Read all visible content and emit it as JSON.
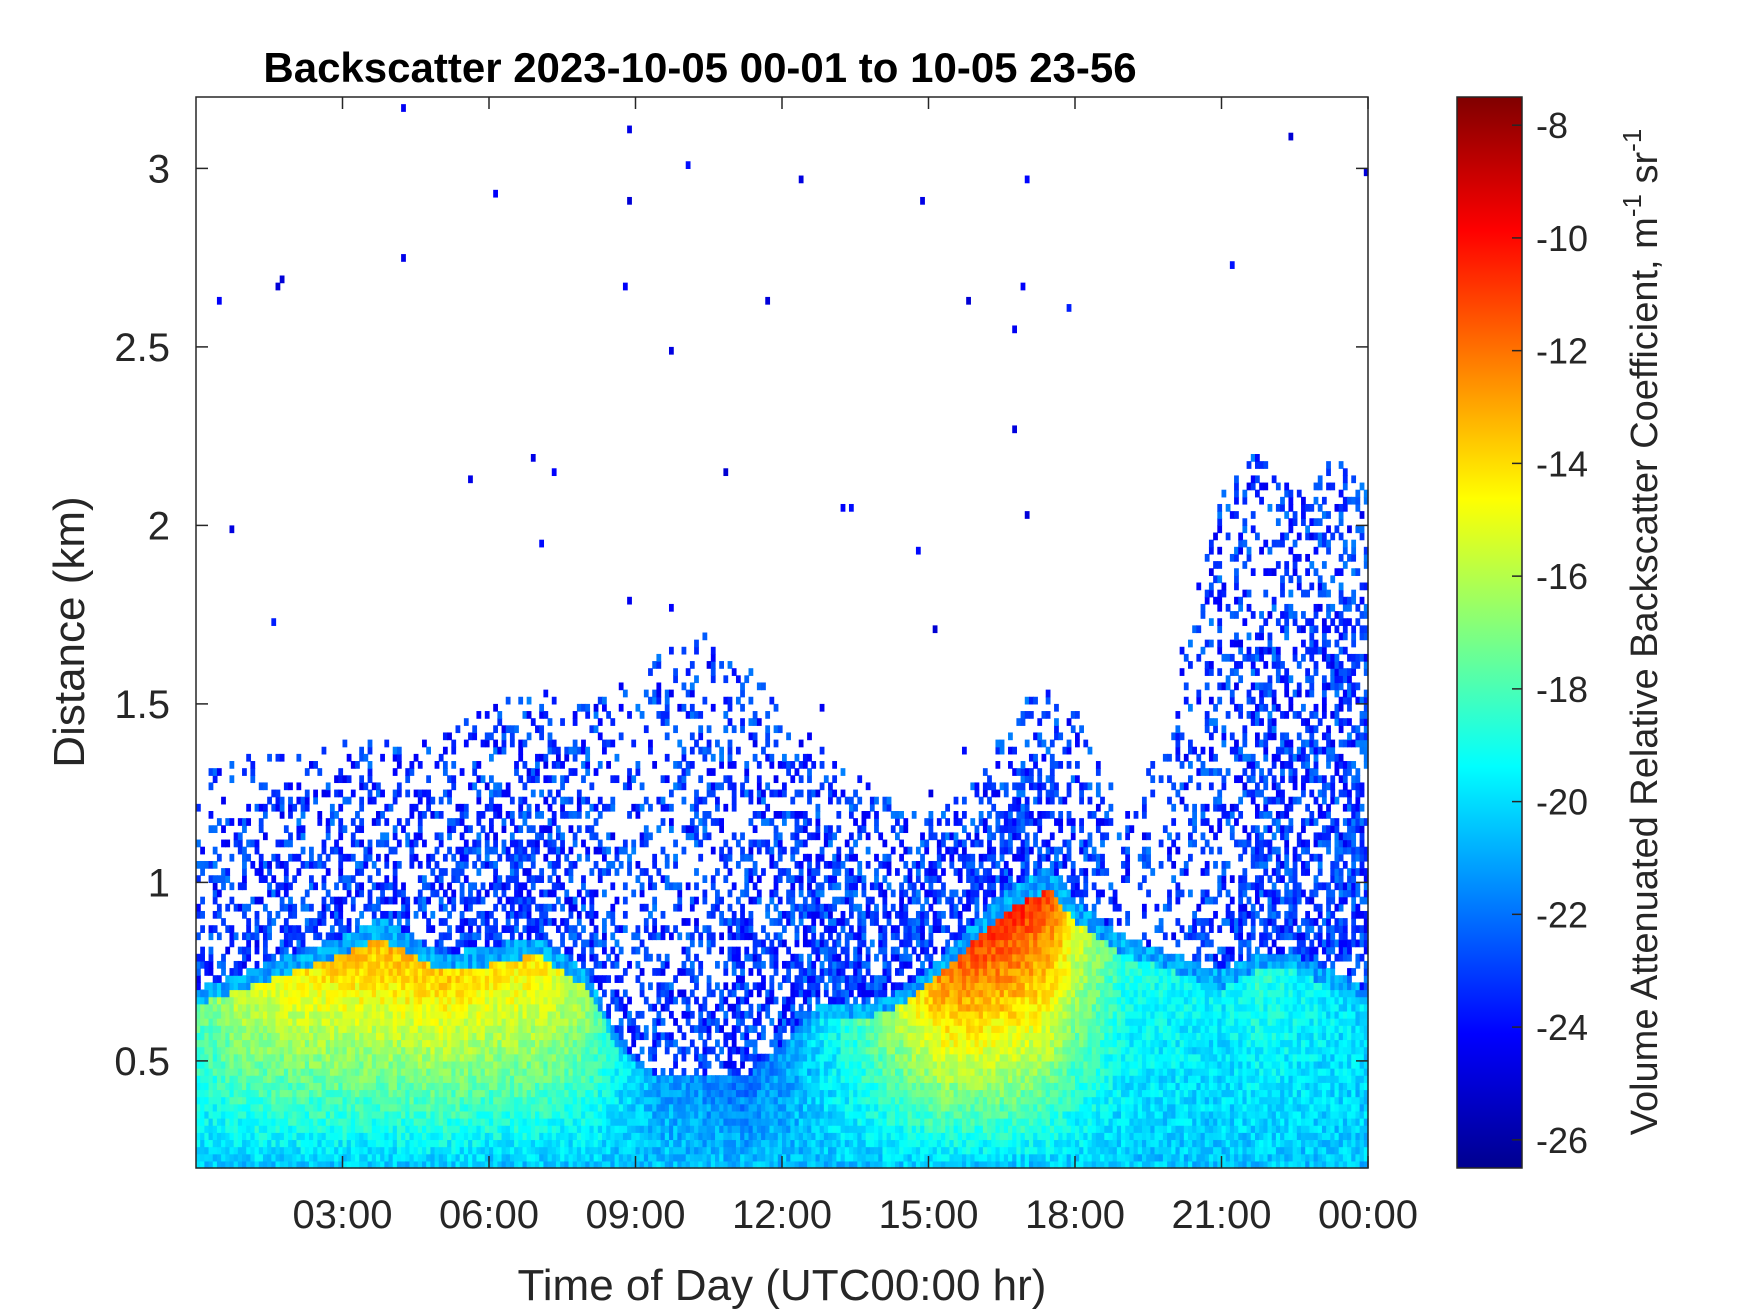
{
  "chart_data": {
    "type": "heatmap",
    "title": "Backscatter 2023-10-05 00-01 to 10-05 23-56",
    "xlabel": "Time of Day (UTC00:00 hr)",
    "ylabel": "Distance (km)",
    "colorbar_label": "Volume Attenuated Relative Backscatter Coefficient, m",
    "colorbar_unit_sup1": "-1",
    "colorbar_unit_mid": " sr",
    "colorbar_unit_sup2": "-1",
    "colormap": "jet",
    "xlim_hours": [
      0,
      24
    ],
    "ylim_km": [
      0.2,
      3.2
    ],
    "clim": [
      -26.5,
      -7.5
    ],
    "x_ticks": [
      {
        "hour": 3,
        "label": "03:00"
      },
      {
        "hour": 6,
        "label": "06:00"
      },
      {
        "hour": 9,
        "label": "09:00"
      },
      {
        "hour": 12,
        "label": "12:00"
      },
      {
        "hour": 15,
        "label": "15:00"
      },
      {
        "hour": 18,
        "label": "18:00"
      },
      {
        "hour": 21,
        "label": "21:00"
      },
      {
        "hour": 24,
        "label": "00:00"
      }
    ],
    "y_ticks": [
      {
        "km": 0.5,
        "label": "0.5"
      },
      {
        "km": 1.0,
        "label": "1"
      },
      {
        "km": 1.5,
        "label": "1.5"
      },
      {
        "km": 2.0,
        "label": "2"
      },
      {
        "km": 2.5,
        "label": "2.5"
      },
      {
        "km": 3.0,
        "label": "3"
      }
    ],
    "colorbar_ticks": [
      {
        "value": -8,
        "label": "-8"
      },
      {
        "value": -10,
        "label": "-10"
      },
      {
        "value": -12,
        "label": "-12"
      },
      {
        "value": -14,
        "label": "-14"
      },
      {
        "value": -16,
        "label": "-16"
      },
      {
        "value": -18,
        "label": "-18"
      },
      {
        "value": -20,
        "label": "-20"
      },
      {
        "value": -22,
        "label": "-22"
      },
      {
        "value": -24,
        "label": "-24"
      },
      {
        "value": -26,
        "label": "-26"
      }
    ],
    "profile": {
      "hours": [
        0,
        1,
        2,
        3,
        3.8,
        5,
        6,
        7,
        8,
        8.7,
        9.5,
        10.5,
        11.3,
        12,
        12.7,
        13.5,
        14.5,
        15.3,
        16,
        16.8,
        17.5,
        18,
        19,
        20,
        21,
        21.7,
        22.5,
        23.3,
        24
      ],
      "layer_top_km": [
        0.7,
        0.75,
        0.8,
        0.85,
        0.9,
        0.8,
        0.82,
        0.85,
        0.75,
        0.55,
        0.45,
        0.45,
        0.45,
        0.55,
        0.65,
        0.65,
        0.7,
        0.8,
        0.9,
        1.0,
        1.05,
        0.95,
        0.85,
        0.8,
        0.75,
        0.8,
        0.8,
        0.75,
        0.7
      ],
      "layer_peak_value": [
        -17.5,
        -15.0,
        -14.0,
        -13.0,
        -12.5,
        -13.0,
        -13.5,
        -13.5,
        -16.0,
        -19.5,
        -21.0,
        -21.5,
        -22.0,
        -21.5,
        -20.0,
        -18.0,
        -15.0,
        -11.5,
        -10.0,
        -9.5,
        -10.5,
        -14.5,
        -18.5,
        -19.0,
        -19.5,
        -18.5,
        -19.0,
        -19.5,
        -20.0
      ],
      "noise_top_km": [
        1.3,
        1.35,
        1.35,
        1.4,
        1.4,
        1.4,
        1.5,
        1.55,
        1.5,
        1.55,
        1.65,
        1.7,
        1.6,
        1.5,
        1.4,
        1.3,
        1.2,
        1.2,
        1.3,
        1.5,
        1.55,
        1.5,
        1.2,
        1.55,
        2.1,
        2.2,
        2.1,
        2.2,
        2.1
      ],
      "noise_density": [
        0.45,
        0.45,
        0.5,
        0.55,
        0.55,
        0.55,
        0.6,
        0.65,
        0.55,
        0.35,
        0.4,
        0.55,
        0.6,
        0.7,
        0.75,
        0.75,
        0.7,
        0.7,
        0.7,
        0.7,
        0.7,
        0.55,
        0.3,
        0.3,
        0.5,
        0.6,
        0.65,
        0.7,
        0.8
      ]
    }
  }
}
